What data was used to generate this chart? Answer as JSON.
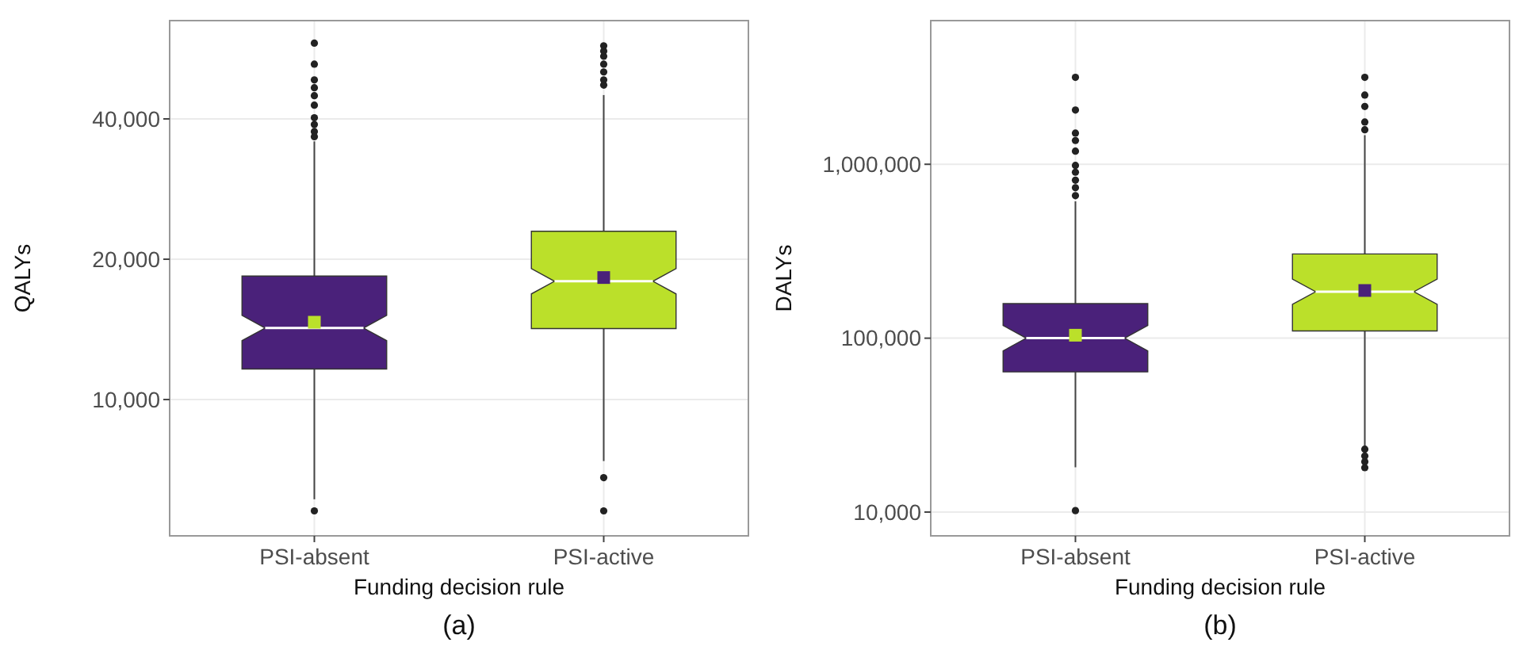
{
  "chart_data": [
    {
      "type": "box",
      "categories": [
        "PSI-absent",
        "PSI-active"
      ],
      "colors": [
        "#4a217a",
        "#bbe02a"
      ],
      "xlabel": "Funding decision rule",
      "ylabel": "QALYs",
      "log": true,
      "ylim": [
        5100,
        65000
      ],
      "yticks": [
        {
          "value": 10000,
          "label": "10,000"
        },
        {
          "value": 20000,
          "label": "20,000"
        },
        {
          "value": 40000,
          "label": "40,000"
        }
      ],
      "grid": true,
      "annotations": [
        "(a)"
      ],
      "boxes": [
        {
          "low": 6110,
          "q1": 11630,
          "median": 14240,
          "q3": 18400,
          "high": 35800,
          "mean": 14650,
          "outliers": [
            5770,
            36640,
            37580,
            38900,
            40230,
            42810,
            44860,
            46660,
            48500,
            52430,
            58150
          ]
        },
        {
          "low": 7380,
          "q1": 14200,
          "median": 17940,
          "q3": 22960,
          "high": 45000,
          "mean": 18270,
          "outliers": [
            5770,
            6800,
            47270,
            48500,
            50440,
            52430,
            54520,
            55930,
            57400
          ]
        }
      ]
    },
    {
      "type": "box",
      "categories": [
        "PSI-absent",
        "PSI-active"
      ],
      "colors": [
        "#4a217a",
        "#bbe02a"
      ],
      "xlabel": "Funding decision rule",
      "ylabel": "DALYs",
      "log": true,
      "ylim": [
        7300,
        6700000
      ],
      "yticks": [
        {
          "value": 10000,
          "label": "10,000"
        },
        {
          "value": 100000,
          "label": "100,000"
        },
        {
          "value": 1000000,
          "label": "1,000,000"
        }
      ],
      "grid": true,
      "annotations": [
        "(b)"
      ],
      "boxes": [
        {
          "low": 18100,
          "q1": 64000,
          "median": 100000,
          "q3": 158000,
          "high": 612000,
          "mean": 104000,
          "outliers": [
            10200,
            660000,
            733000,
            810000,
            900000,
            985000,
            1190000,
            1370000,
            1510000,
            2050000,
            3160000
          ]
        },
        {
          "low": 23900,
          "q1": 110000,
          "median": 185000,
          "q3": 305000,
          "high": 1470000,
          "mean": 188000,
          "outliers": [
            18000,
            19500,
            21000,
            23000,
            1580000,
            1750000,
            2150000,
            2500000,
            3160000
          ]
        }
      ]
    }
  ]
}
